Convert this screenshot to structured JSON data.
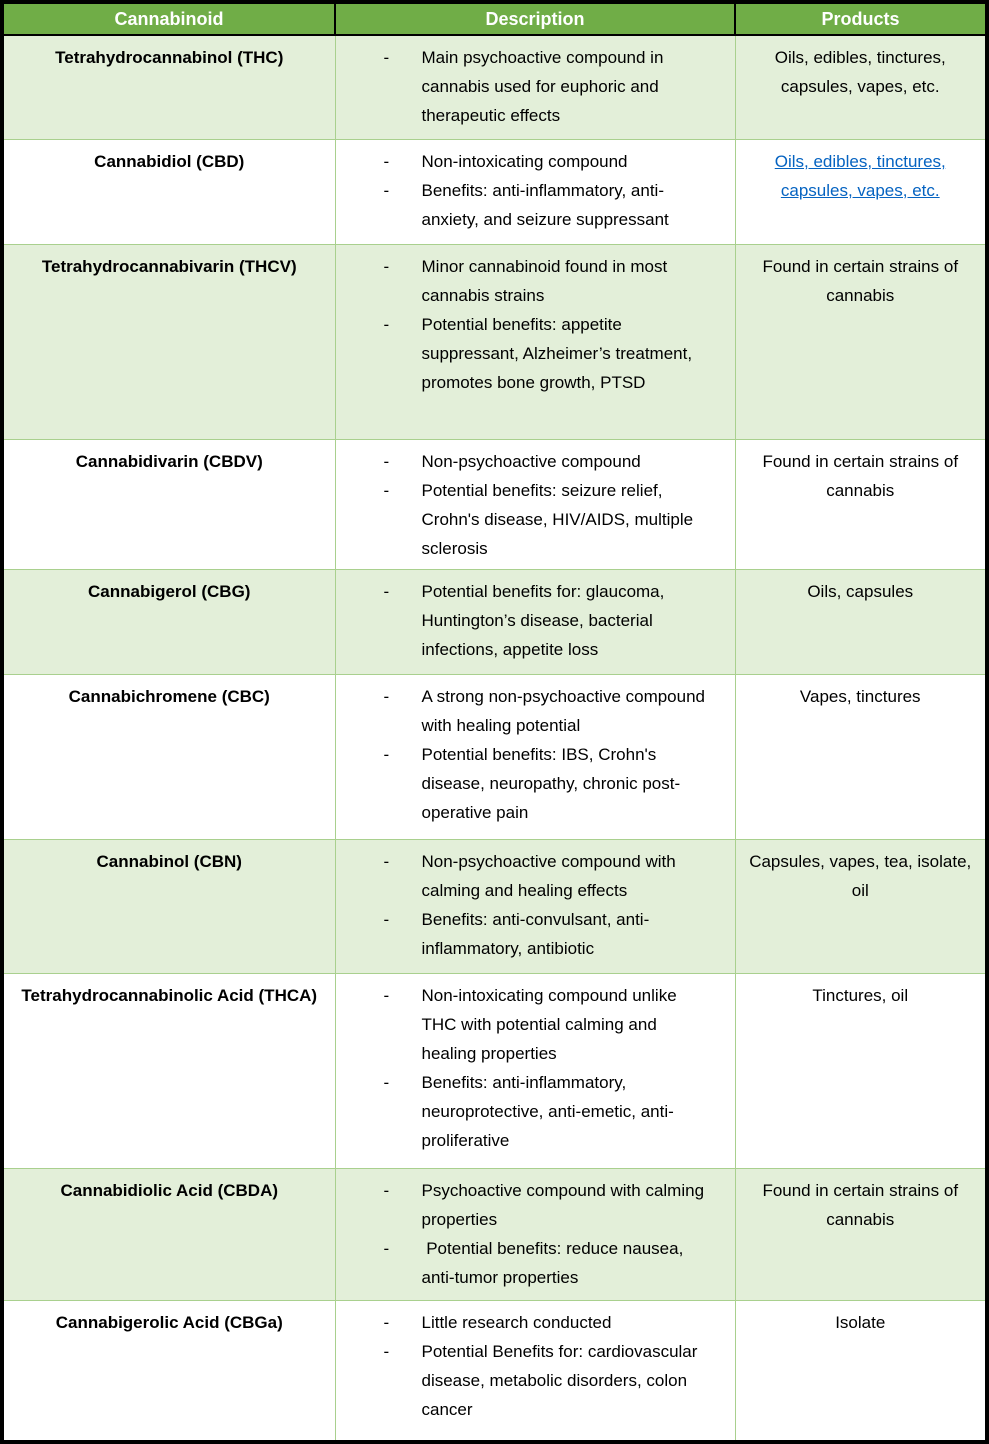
{
  "bullet_char": "-",
  "colors": {
    "header_bg": "#70AD47",
    "header_text": "#FFFFFF",
    "row_shaded_bg": "#E3EFD9",
    "row_plain_bg": "#FFFFFF",
    "grid_line": "#A9D08E",
    "outer_border": "#000000",
    "text": "#000000",
    "link": "#0563C1"
  },
  "table": {
    "headers": [
      "Cannabinoid",
      "Description",
      "Products"
    ],
    "rows": [
      {
        "cannabinoid": "Tetrahydrocannabinol (THC)",
        "description": [
          "Main psychoactive compound in cannabis used for euphoric and therapeutic effects"
        ],
        "products": "Oils, edibles, tinctures, capsules, vapes, etc.",
        "products_link": false
      },
      {
        "cannabinoid": "Cannabidiol (CBD)",
        "description": [
          "Non-intoxicating compound",
          "Benefits: anti-inflammatory, anti-anxiety, and seizure suppressant"
        ],
        "products": "Oils, edibles, tinctures, capsules, vapes, etc.",
        "products_link": true
      },
      {
        "cannabinoid": "Tetrahydrocannabivarin (THCV)",
        "description": [
          "Minor cannabinoid found in most cannabis strains",
          "Potential benefits: appetite suppressant, Alzheimer’s treatment, promotes bone growth, PTSD"
        ],
        "products": "Found in certain strains of cannabis",
        "products_link": false
      },
      {
        "cannabinoid": "Cannabidivarin (CBDV)",
        "description": [
          "Non-psychoactive compound",
          "Potential benefits: seizure relief, Crohn's disease, HIV/AIDS, multiple sclerosis"
        ],
        "products": "Found in certain strains of cannabis",
        "products_link": false
      },
      {
        "cannabinoid": "Cannabigerol (CBG)",
        "description": [
          "Potential benefits for: glaucoma, Huntington’s disease, bacterial infections, appetite loss"
        ],
        "products": "Oils, capsules",
        "products_link": false
      },
      {
        "cannabinoid": "Cannabichromene (CBC)",
        "description": [
          "A strong non-psychoactive compound with healing potential",
          "Potential benefits: IBS, Crohn's disease, neuropathy, chronic post-operative pain"
        ],
        "products": "Vapes, tinctures",
        "products_link": false
      },
      {
        "cannabinoid": "Cannabinol (CBN)",
        "description": [
          "Non-psychoactive compound with calming and healing effects",
          "Benefits: anti-convulsant, anti-inflammatory, antibiotic"
        ],
        "products": "Capsules, vapes, tea, isolate, oil",
        "products_link": false
      },
      {
        "cannabinoid": "Tetrahydrocannabinolic Acid (THCA)",
        "description": [
          "Non-intoxicating compound unlike THC with potential calming and healing properties",
          "Benefits: anti-inflammatory, neuroprotective, anti-emetic, anti-proliferative"
        ],
        "products": "Tinctures, oil",
        "products_link": false
      },
      {
        "cannabinoid": "Cannabidiolic Acid (CBDA)",
        "description": [
          "Psychoactive compound with calming properties",
          " Potential benefits: reduce nausea, anti-tumor properties"
        ],
        "products": "Found in certain strains of cannabis",
        "products_link": false
      },
      {
        "cannabinoid": "Cannabigerolic Acid (CBGa)",
        "description": [
          "Little research conducted",
          "Potential Benefits for: cardiovascular disease, metabolic disorders, colon cancer"
        ],
        "products": "Isolate",
        "products_link": false
      }
    ]
  }
}
